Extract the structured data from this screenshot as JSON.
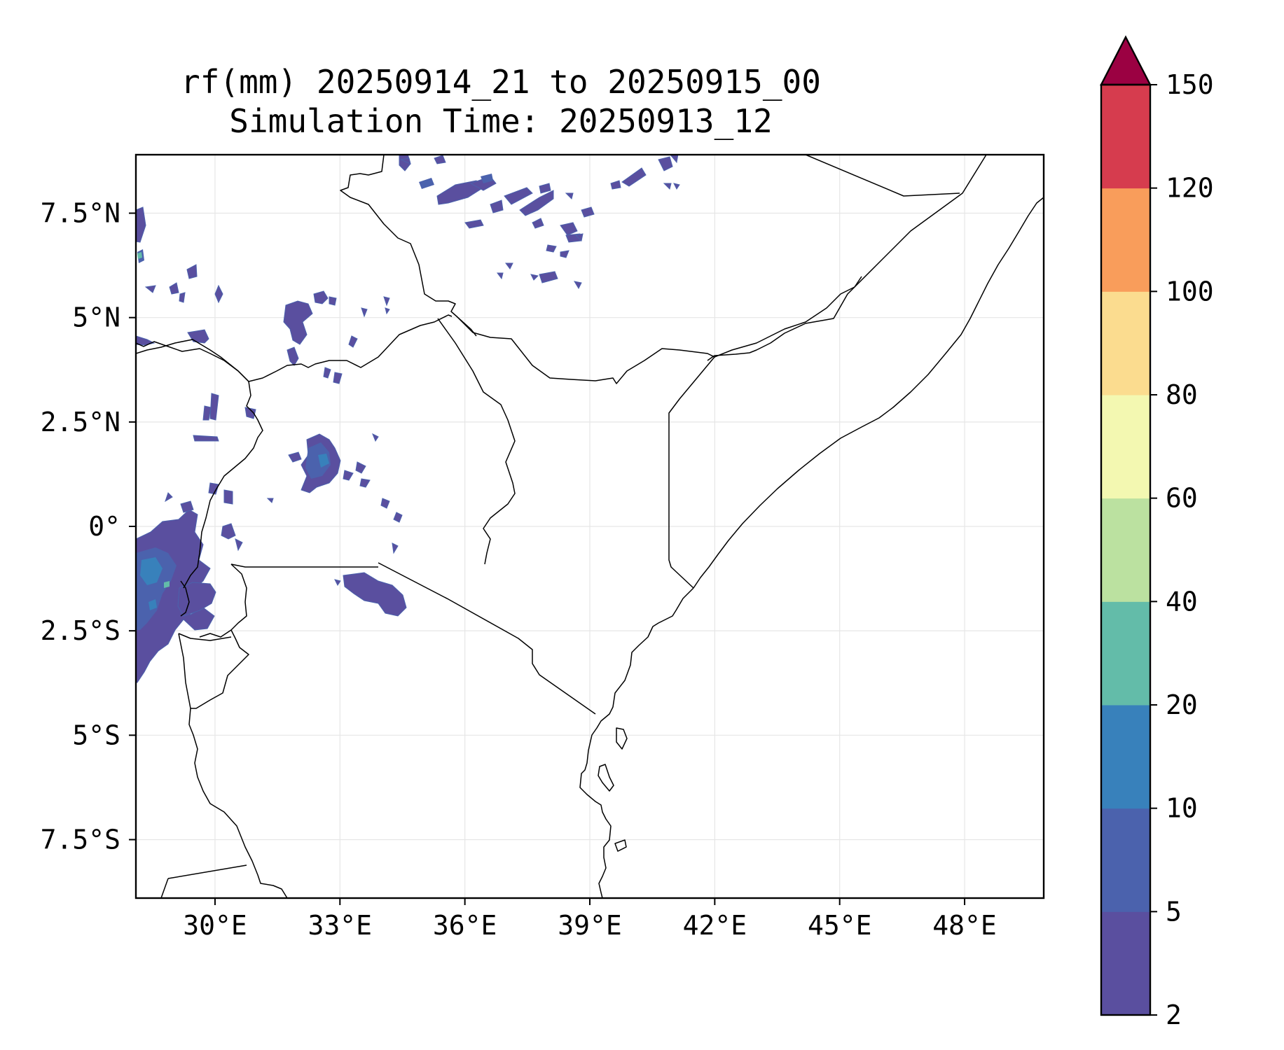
{
  "title_line1": "rf(mm) 20250914_21 to 20250915_00",
  "title_line2": "Simulation Time: 20250913_12",
  "map": {
    "lon_range": [
      28.1,
      49.9
    ],
    "lat_range": [
      -8.9,
      8.9
    ],
    "x_ticks": [
      {
        "value": 30,
        "label": "30°E"
      },
      {
        "value": 33,
        "label": "33°E"
      },
      {
        "value": 36,
        "label": "36°E"
      },
      {
        "value": 39,
        "label": "39°E"
      },
      {
        "value": 42,
        "label": "42°E"
      },
      {
        "value": 45,
        "label": "45°E"
      },
      {
        "value": 48,
        "label": "48°E"
      }
    ],
    "y_ticks": [
      {
        "value": 7.5,
        "label": "7.5°N"
      },
      {
        "value": 5,
        "label": "5°N"
      },
      {
        "value": 2.5,
        "label": "2.5°N"
      },
      {
        "value": 0,
        "label": "0°"
      },
      {
        "value": -2.5,
        "label": "2.5°S"
      },
      {
        "value": -5,
        "label": "5°S"
      },
      {
        "value": -7.5,
        "label": "7.5°S"
      }
    ],
    "grid": true
  },
  "colorbar": {
    "levels": [
      "2",
      "5",
      "10",
      "20",
      "40",
      "60",
      "80",
      "100",
      "120",
      "150"
    ],
    "colors": [
      "#5a4f9f",
      "#4b62ad",
      "#3881bb",
      "#63bca9",
      "#bbe1a0",
      "#f3f8b1",
      "#fbdc8f",
      "#f99d5b",
      "#d63c4e"
    ],
    "extend_color": "#9b0142",
    "extend": "max"
  }
}
